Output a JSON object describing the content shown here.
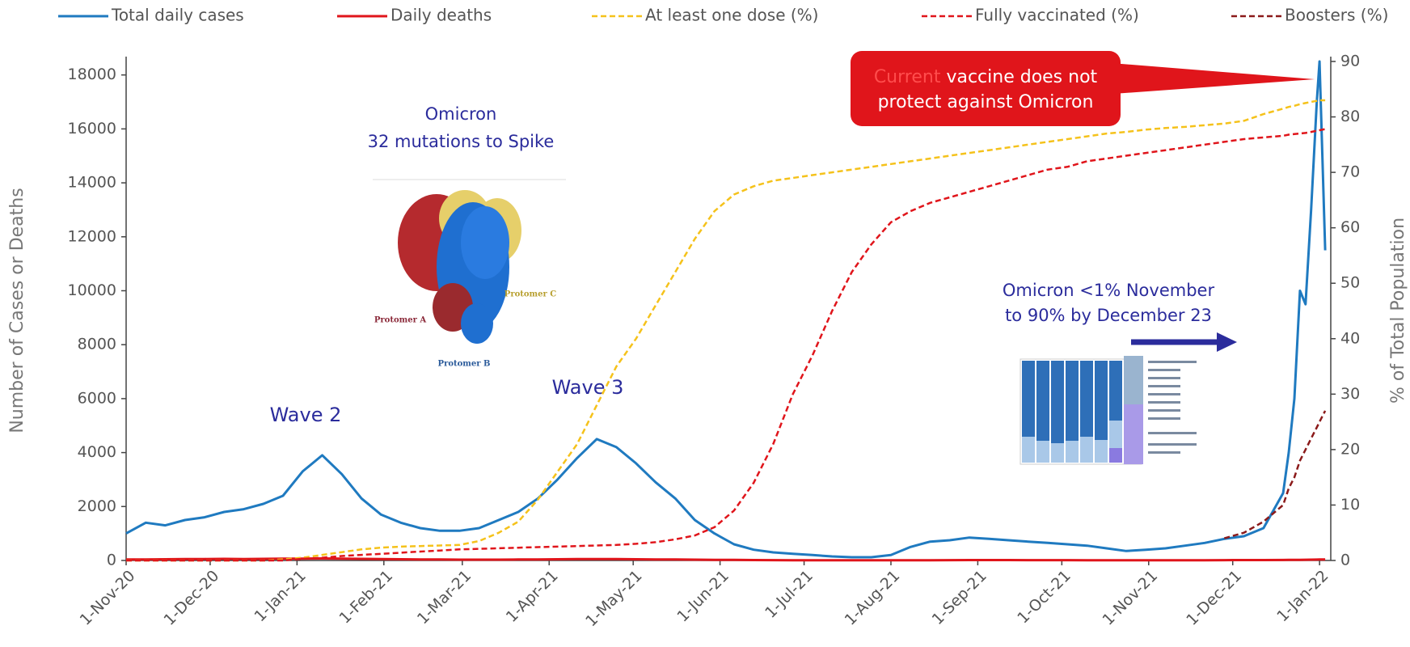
{
  "chart_data": {
    "type": "line",
    "y_label": "Number of Cases or Deaths",
    "y2_label": "% of Total Population",
    "x": [
      "2020-11-01",
      "2020-11-08",
      "2020-11-15",
      "2020-11-22",
      "2020-11-29",
      "2020-12-06",
      "2020-12-13",
      "2020-12-20",
      "2020-12-27",
      "2021-01-03",
      "2021-01-10",
      "2021-01-17",
      "2021-01-24",
      "2021-01-31",
      "2021-02-07",
      "2021-02-14",
      "2021-02-21",
      "2021-02-28",
      "2021-03-07",
      "2021-03-14",
      "2021-03-21",
      "2021-03-28",
      "2021-04-04",
      "2021-04-11",
      "2021-04-18",
      "2021-04-25",
      "2021-05-02",
      "2021-05-09",
      "2021-05-16",
      "2021-05-23",
      "2021-05-30",
      "2021-06-06",
      "2021-06-13",
      "2021-06-20",
      "2021-06-27",
      "2021-07-04",
      "2021-07-11",
      "2021-07-18",
      "2021-07-25",
      "2021-08-01",
      "2021-08-08",
      "2021-08-15",
      "2021-08-22",
      "2021-08-29",
      "2021-09-05",
      "2021-09-12",
      "2021-09-19",
      "2021-09-26",
      "2021-10-03",
      "2021-10-10",
      "2021-10-17",
      "2021-10-24",
      "2021-10-31",
      "2021-11-07",
      "2021-11-14",
      "2021-11-21",
      "2021-11-28",
      "2021-12-05",
      "2021-12-12",
      "2021-12-19",
      "2021-12-21",
      "2021-12-23",
      "2021-12-25",
      "2021-12-27",
      "2021-12-29",
      "2021-12-31",
      "2022-01-01",
      "2022-01-03"
    ],
    "xlim": [
      "2020-11-01",
      "2022-01-05"
    ],
    "xticks": [
      {
        "value": "2020-11-01",
        "label": "1-Nov-20"
      },
      {
        "value": "2020-12-01",
        "label": "1-Dec-20"
      },
      {
        "value": "2021-01-01",
        "label": "1-Jan-21"
      },
      {
        "value": "2021-02-01",
        "label": "1-Feb-21"
      },
      {
        "value": "2021-03-01",
        "label": "1-Mar-21"
      },
      {
        "value": "2021-04-01",
        "label": "1-Apr-21"
      },
      {
        "value": "2021-05-01",
        "label": "1-May-21"
      },
      {
        "value": "2021-06-01",
        "label": "1-Jun-21"
      },
      {
        "value": "2021-07-01",
        "label": "1-Jul-21"
      },
      {
        "value": "2021-08-01",
        "label": "1-Aug-21"
      },
      {
        "value": "2021-09-01",
        "label": "1-Sep-21"
      },
      {
        "value": "2021-10-01",
        "label": "1-Oct-21"
      },
      {
        "value": "2021-11-01",
        "label": "1-Nov-21"
      },
      {
        "value": "2021-12-01",
        "label": "1-Dec-21"
      },
      {
        "value": "2022-01-01",
        "label": "1-Jan-22"
      }
    ],
    "ylim": [
      0,
      18500
    ],
    "yticks": [
      0,
      2000,
      4000,
      6000,
      8000,
      10000,
      12000,
      14000,
      16000,
      18000
    ],
    "y2lim": [
      0,
      90
    ],
    "y2ticks": [
      0,
      10,
      20,
      30,
      40,
      50,
      60,
      70,
      80,
      90
    ],
    "series": [
      {
        "name": "Total daily cases",
        "color": "#1f7ac0",
        "dashed": false,
        "values": [
          1000,
          1400,
          1300,
          1500,
          1600,
          1800,
          1900,
          2100,
          2400,
          3300,
          3900,
          3200,
          2300,
          1700,
          1400,
          1200,
          1100,
          1100,
          1200,
          1500,
          1800,
          2300,
          3000,
          3800,
          4500,
          4200,
          3600,
          2900,
          2300,
          1500,
          1000,
          600,
          400,
          300,
          250,
          200,
          150,
          120,
          120,
          200,
          500,
          700,
          750,
          850,
          800,
          750,
          700,
          650,
          600,
          550,
          450,
          350,
          400,
          450,
          550,
          650,
          800,
          900,
          1200,
          2500,
          4000,
          6000,
          10000,
          9500,
          13000,
          17000,
          18500,
          11500
        ]
      },
      {
        "name": "Daily deaths",
        "color": "#e0151b",
        "dashed": false,
        "values": [
          40,
          35,
          45,
          50,
          55,
          60,
          55,
          60,
          65,
          70,
          75,
          70,
          60,
          50,
          45,
          40,
          35,
          30,
          30,
          30,
          35,
          40,
          45,
          50,
          55,
          50,
          45,
          40,
          35,
          30,
          25,
          20,
          15,
          12,
          10,
          8,
          6,
          5,
          5,
          6,
          8,
          10,
          12,
          14,
          15,
          14,
          13,
          12,
          11,
          10,
          9,
          8,
          8,
          8,
          9,
          10,
          12,
          14,
          15,
          18,
          20,
          22,
          25,
          28,
          30,
          32,
          35,
          35
        ]
      },
      {
        "name": "At least one dose (%)",
        "color": "#f5c21b",
        "dashed": true,
        "axis": "y2",
        "values": [
          0,
          0,
          0,
          0,
          0,
          0,
          0,
          0,
          0.2,
          0.5,
          1,
          1.5,
          2,
          2.3,
          2.5,
          2.6,
          2.7,
          2.8,
          3.5,
          5,
          7,
          11,
          16,
          21,
          28,
          35,
          40,
          46,
          52,
          58,
          63,
          66,
          67.5,
          68.5,
          69,
          69.5,
          70,
          70.5,
          71,
          71.5,
          72,
          72.5,
          73,
          73.5,
          74,
          74.5,
          75,
          75.5,
          76,
          76.5,
          77,
          77.3,
          77.7,
          78,
          78.2,
          78.5,
          78.8,
          79.3,
          80.5,
          81.5,
          81.8,
          82,
          82.3,
          82.5,
          82.7,
          82.9,
          83,
          83
        ]
      },
      {
        "name": "Fully vaccinated  (%)",
        "color": "#e0151b",
        "dashed": true,
        "axis": "y2",
        "values": [
          0,
          0,
          0,
          0,
          0,
          0,
          0,
          0,
          0,
          0.3,
          0.5,
          0.8,
          1,
          1.2,
          1.4,
          1.6,
          1.8,
          2,
          2.1,
          2.2,
          2.3,
          2.4,
          2.5,
          2.6,
          2.7,
          2.8,
          3,
          3.3,
          3.8,
          4.5,
          6,
          9,
          14,
          21,
          30,
          37,
          45,
          52,
          57,
          61,
          63,
          64.5,
          65.5,
          66.5,
          67.5,
          68.5,
          69.5,
          70.5,
          71,
          72,
          72.5,
          73,
          73.5,
          74,
          74.5,
          75,
          75.5,
          76,
          76.3,
          76.6,
          76.8,
          76.9,
          77,
          77.1,
          77.3,
          77.5,
          77.6,
          77.8
        ]
      },
      {
        "name": "Boosters (%)",
        "color": "#8b1a1a",
        "dashed": true,
        "axis": "y2",
        "values": [
          null,
          null,
          null,
          null,
          null,
          null,
          null,
          null,
          null,
          null,
          null,
          null,
          null,
          null,
          null,
          null,
          null,
          null,
          null,
          null,
          null,
          null,
          null,
          null,
          null,
          null,
          null,
          null,
          null,
          null,
          null,
          null,
          null,
          null,
          null,
          null,
          null,
          null,
          null,
          null,
          null,
          null,
          null,
          null,
          null,
          null,
          null,
          null,
          null,
          null,
          null,
          null,
          null,
          null,
          null,
          null,
          4,
          5,
          7,
          10,
          13,
          15,
          18,
          20,
          22,
          24,
          25,
          27
        ]
      }
    ],
    "annotations": {
      "omicron_title": "Omicron",
      "omicron_subtitle": "32 mutations to Spike",
      "protomer_a": "Protomer A",
      "protomer_b": "Protomer B",
      "protomer_c": "Protomer C",
      "wave2": "Wave 2",
      "wave3": "Wave 3",
      "spread_line1": "Omicron <1% November",
      "spread_line2": "to 90% by December 23",
      "callout_highlight": "Current",
      "callout_line1": " vaccine does not",
      "callout_line2": "protect against Omicron"
    }
  }
}
